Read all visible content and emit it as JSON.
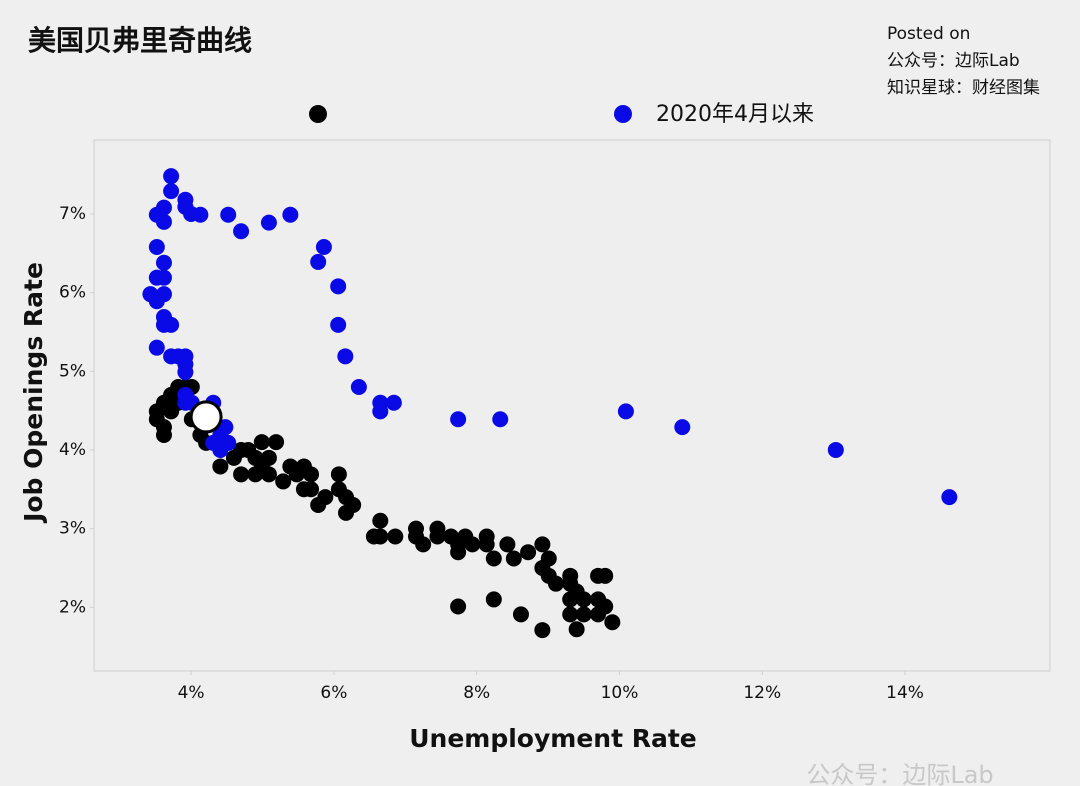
{
  "chart_data": {
    "type": "scatter",
    "title": "美国贝弗里奇曲线",
    "source_lines": [
      "Posted on",
      "公众号：边际Lab",
      "知识星球：财经图集"
    ],
    "watermark": "公众号：边际Lab",
    "xlabel": "Unemployment Rate",
    "ylabel": "Job Openings Rate",
    "xlim": [
      2.64,
      16.03
    ],
    "ylim": [
      1.19,
      7.94
    ],
    "xticks": [
      {
        "value": 4,
        "label": "4%"
      },
      {
        "value": 6,
        "label": "6%"
      },
      {
        "value": 8,
        "label": "8%"
      },
      {
        "value": 10,
        "label": "10%"
      },
      {
        "value": 12,
        "label": "12%"
      },
      {
        "value": 14,
        "label": "14%"
      }
    ],
    "yticks": [
      {
        "value": 2,
        "label": "2%"
      },
      {
        "value": 3,
        "label": "3%"
      },
      {
        "value": 4,
        "label": "4%"
      },
      {
        "value": 5,
        "label": "5%"
      },
      {
        "value": 6,
        "label": "6%"
      },
      {
        "value": 7,
        "label": "7%"
      }
    ],
    "series": [
      {
        "color": "#000000",
        "x": [
          3.52,
          3.52,
          3.62,
          3.62,
          3.62,
          3.72,
          3.72,
          3.82,
          3.82,
          3.92,
          4.01,
          4.01,
          4.13,
          4.21,
          4.41,
          4.6,
          4.7,
          4.7,
          4.8,
          4.9,
          4.9,
          4.99,
          4.99,
          5.09,
          5.09,
          5.19,
          5.29,
          5.39,
          5.48,
          5.58,
          5.58,
          5.68,
          5.68,
          5.78,
          5.88,
          6.07,
          6.07,
          6.17,
          6.17,
          6.27,
          6.56,
          6.65,
          6.65,
          6.86,
          7.15,
          7.15,
          7.25,
          7.45,
          7.45,
          7.64,
          7.74,
          7.74,
          7.84,
          7.94,
          8.14,
          8.14,
          8.24,
          8.43,
          8.52,
          8.72,
          8.92,
          8.92,
          9.01,
          9.01,
          9.11,
          9.31,
          9.31,
          9.4,
          9.5,
          9.31,
          9.31,
          9.5,
          9.4,
          9.7,
          9.8,
          9.7,
          9.7,
          9.8,
          9.9,
          8.92,
          8.62,
          8.24,
          7.74
        ],
        "values": [
          4.49,
          4.39,
          4.6,
          4.29,
          4.19,
          4.7,
          4.49,
          4.8,
          4.6,
          4.8,
          4.8,
          4.39,
          4.19,
          4.09,
          3.79,
          3.9,
          4.0,
          3.69,
          4.0,
          3.9,
          3.69,
          4.1,
          3.79,
          3.9,
          3.69,
          4.1,
          3.6,
          3.79,
          3.69,
          3.79,
          3.5,
          3.69,
          3.5,
          3.3,
          3.4,
          3.69,
          3.5,
          3.4,
          3.2,
          3.3,
          2.9,
          3.1,
          2.9,
          2.9,
          3.0,
          2.9,
          2.8,
          3.0,
          2.9,
          2.9,
          2.8,
          2.7,
          2.9,
          2.8,
          2.9,
          2.8,
          2.62,
          2.8,
          2.62,
          2.7,
          2.8,
          2.5,
          2.62,
          2.4,
          2.3,
          2.3,
          2.4,
          2.2,
          2.1,
          2.1,
          1.91,
          1.91,
          1.72,
          2.4,
          2.4,
          2.1,
          1.91,
          2.01,
          1.81,
          1.71,
          1.91,
          2.1,
          2.01
        ]
      },
      {
        "name": "2020年4月以来",
        "color": "#0a0ae6",
        "x": [
          3.72,
          3.72,
          3.92,
          3.92,
          4.0,
          4.13,
          3.52,
          3.62,
          3.62,
          4.52,
          4.7,
          5.09,
          5.39,
          5.86,
          5.78,
          6.06,
          6.06,
          6.16,
          6.35,
          6.65,
          6.84,
          6.65,
          7.74,
          8.33,
          10.09,
          10.88,
          13.03,
          14.62,
          3.52,
          3.62,
          3.52,
          3.62,
          3.43,
          3.62,
          3.52,
          3.62,
          3.62,
          3.72,
          3.52,
          3.72,
          3.82,
          3.92,
          3.92,
          3.92,
          3.92,
          3.92,
          4.01,
          4.13,
          4.31,
          4.31,
          4.48,
          4.41,
          4.52,
          4.31,
          4.41
        ],
        "values": [
          7.48,
          7.29,
          7.18,
          7.09,
          7.0,
          6.99,
          6.99,
          7.08,
          6.9,
          6.99,
          6.78,
          6.89,
          6.99,
          6.58,
          6.39,
          6.08,
          5.59,
          5.19,
          4.8,
          4.6,
          4.6,
          4.49,
          4.39,
          4.39,
          4.49,
          4.29,
          4.0,
          3.4,
          6.58,
          6.38,
          6.19,
          6.19,
          5.98,
          5.98,
          5.89,
          5.69,
          5.59,
          5.59,
          5.3,
          5.19,
          5.19,
          5.19,
          5.09,
          4.99,
          4.7,
          4.6,
          4.6,
          4.49,
          4.6,
          4.39,
          4.29,
          4.19,
          4.09,
          4.09,
          4.0
        ]
      }
    ],
    "highlight": {
      "x": 4.21,
      "y": 4.42
    }
  }
}
